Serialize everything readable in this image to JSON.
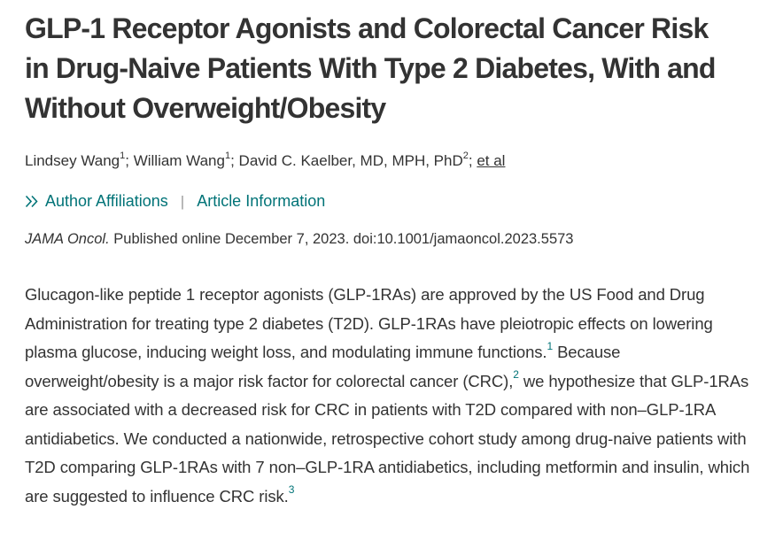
{
  "colors": {
    "teal": "#007377",
    "text": "#333333",
    "background": "#ffffff"
  },
  "article": {
    "title": "GLP-1 Receptor Agonists and Colorectal Cancer Risk in Drug-Naive Patients With Type 2 Diabetes, With and Without Overweight/Obesity",
    "authors": [
      {
        "name": "Lindsey Wang",
        "sup": "1"
      },
      {
        "name": "William Wang",
        "sup": "1"
      },
      {
        "name": "David C. Kaelber, MD, MPH, PhD",
        "sup": "2"
      }
    ],
    "authors_separator": ";",
    "et_al": "et al",
    "links": {
      "author_affiliations": "Author Affiliations",
      "article_information": "Article Information",
      "divider": "|"
    },
    "citation": {
      "journal": "JAMA Oncol.",
      "text": "Published online December 7, 2023. doi:10.1001/jamaoncol.2023.5573"
    },
    "body_segments": [
      {
        "type": "text",
        "text": "Glucagon-like peptide 1 receptor agonists (GLP-1RAs) are approved by the US Food and Drug Administration for treating type 2 diabetes (T2D). GLP-1RAs have pleiotropic effects on lowering plasma glucose, inducing weight loss, and modulating immune functions."
      },
      {
        "type": "ref",
        "text": "1"
      },
      {
        "type": "text",
        "text": " Because overweight/obesity is a major risk factor for colorectal cancer (CRC),"
      },
      {
        "type": "ref",
        "text": "2"
      },
      {
        "type": "text",
        "text": " we hypothesize that GLP-1RAs are associated with a decreased risk for CRC in patients with T2D compared with non–GLP-1RA antidiabetics. We conducted a nationwide, retrospective cohort study among drug-naive patients with T2D comparing GLP-1RAs with 7 non–GLP-1RA antidiabetics, including metformin and insulin, which are suggested to influence CRC risk."
      },
      {
        "type": "ref",
        "text": "3"
      }
    ]
  }
}
